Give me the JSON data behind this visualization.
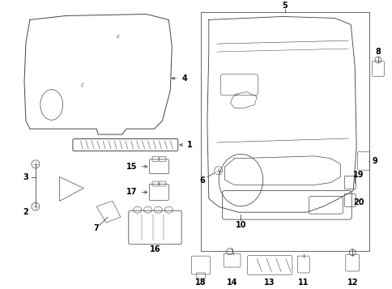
{
  "background_color": "#ffffff",
  "line_color": "#444444",
  "label_color": "#000000",
  "fig_width": 4.85,
  "fig_height": 3.57,
  "dpi": 100
}
